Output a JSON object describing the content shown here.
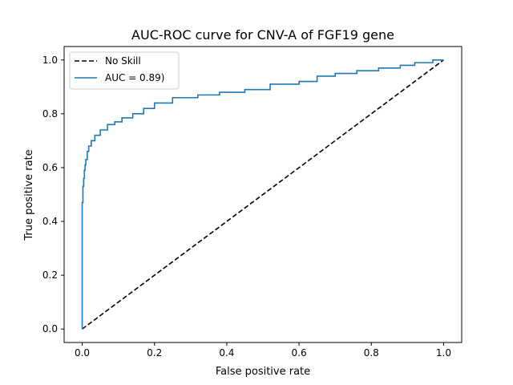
{
  "chart_data": {
    "type": "line",
    "title": "AUC-ROC curve for CNV-A of FGF19 gene",
    "xlabel": "False positive rate",
    "ylabel": "True positive rate",
    "xlim": [
      -0.05,
      1.05
    ],
    "ylim": [
      -0.05,
      1.05
    ],
    "xticks": [
      0.0,
      0.2,
      0.4,
      0.6,
      0.8,
      1.0
    ],
    "xtick_labels": [
      "0.0",
      "0.2",
      "0.4",
      "0.6",
      "0.8",
      "1.0"
    ],
    "yticks": [
      0.0,
      0.2,
      0.4,
      0.6,
      0.8,
      1.0
    ],
    "ytick_labels": [
      "0.0",
      "0.2",
      "0.4",
      "0.6",
      "0.8",
      "1.0"
    ],
    "grid": false,
    "legend_position": "top-left",
    "series": [
      {
        "name": "No Skill",
        "color": "#000000",
        "dash": "dashed",
        "x": [
          0.0,
          1.0
        ],
        "y": [
          0.0,
          1.0
        ]
      },
      {
        "name": "AUC = 0.89)",
        "color": "#1f77b4",
        "dash": "solid",
        "x": [
          0.0,
          0.0,
          0.002,
          0.002,
          0.004,
          0.004,
          0.006,
          0.006,
          0.008,
          0.008,
          0.01,
          0.01,
          0.014,
          0.014,
          0.018,
          0.018,
          0.025,
          0.025,
          0.035,
          0.035,
          0.05,
          0.05,
          0.07,
          0.07,
          0.09,
          0.09,
          0.11,
          0.11,
          0.14,
          0.14,
          0.17,
          0.17,
          0.2,
          0.2,
          0.25,
          0.25,
          0.32,
          0.32,
          0.38,
          0.38,
          0.45,
          0.45,
          0.52,
          0.52,
          0.6,
          0.6,
          0.65,
          0.65,
          0.7,
          0.7,
          0.76,
          0.76,
          0.82,
          0.82,
          0.88,
          0.88,
          0.92,
          0.92,
          0.97,
          0.97,
          1.0,
          1.0
        ],
        "y": [
          0.0,
          0.47,
          0.47,
          0.53,
          0.53,
          0.56,
          0.56,
          0.59,
          0.59,
          0.61,
          0.61,
          0.63,
          0.63,
          0.66,
          0.66,
          0.68,
          0.68,
          0.7,
          0.7,
          0.72,
          0.72,
          0.74,
          0.74,
          0.76,
          0.76,
          0.77,
          0.77,
          0.785,
          0.785,
          0.8,
          0.8,
          0.82,
          0.82,
          0.84,
          0.84,
          0.86,
          0.86,
          0.87,
          0.87,
          0.88,
          0.88,
          0.89,
          0.89,
          0.91,
          0.91,
          0.92,
          0.92,
          0.94,
          0.94,
          0.95,
          0.95,
          0.96,
          0.96,
          0.97,
          0.97,
          0.98,
          0.98,
          0.99,
          0.99,
          1.0,
          1.0,
          1.0
        ]
      }
    ]
  }
}
